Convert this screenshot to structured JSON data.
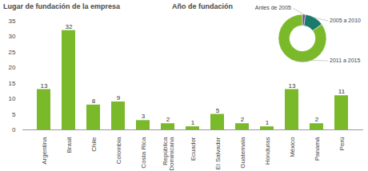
{
  "chart_data": [
    {
      "type": "bar",
      "title": "Lugar de fundación de la empresa",
      "categories": [
        "Argentina",
        "Brasil",
        "Chile",
        "Colombia",
        "Costa Rica",
        "República Dominicana",
        "Ecuador",
        "El Salvador",
        "Guatemala",
        "Honduras",
        "México",
        "Panamá",
        "Perú"
      ],
      "values": [
        13,
        32,
        8,
        9,
        3,
        2,
        1,
        5,
        2,
        1,
        13,
        2,
        11
      ],
      "color": "#7ab929",
      "ylim": [
        0,
        35
      ],
      "yticks": [
        0,
        5,
        10,
        15,
        20,
        25,
        30,
        35
      ],
      "data_labels": true
    },
    {
      "type": "pie",
      "title": "Año de fundación",
      "categories": [
        "Antes de 2005",
        "2005 a 2010",
        "2011 a 2015"
      ],
      "values": [
        2,
        13,
        85
      ],
      "colors": [
        "#7b3f8c",
        "#1b7a6c",
        "#7ab929"
      ]
    }
  ]
}
